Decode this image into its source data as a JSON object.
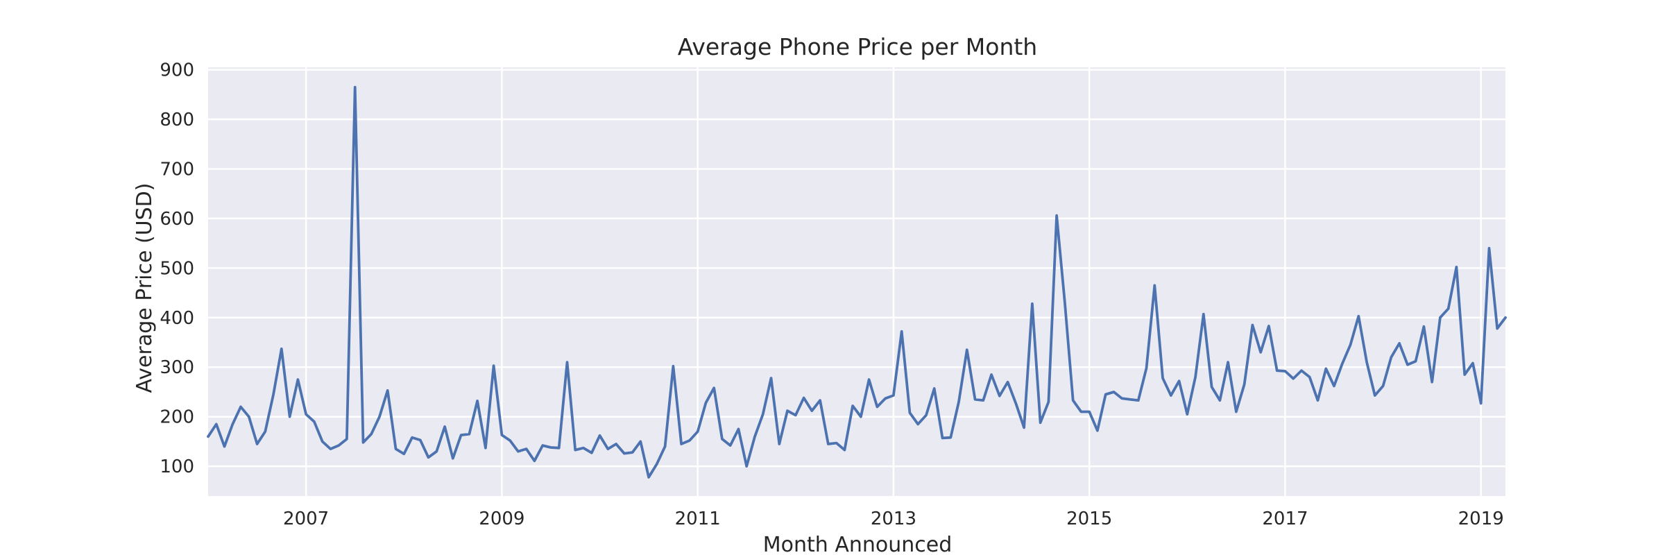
{
  "chart_data": {
    "type": "line",
    "title": "Average Phone Price per Month",
    "xlabel": "Month Announced",
    "ylabel": "Average Price (USD)",
    "xlim": [
      "2006-01",
      "2019-04"
    ],
    "ylim": [
      40,
      905
    ],
    "x_ticks": [
      "2007",
      "2009",
      "2011",
      "2013",
      "2015",
      "2017",
      "2019"
    ],
    "y_ticks": [
      100,
      200,
      300,
      400,
      500,
      600,
      700,
      800,
      900
    ],
    "grid": true,
    "line_color": "#4c72b0",
    "plot_background": "#eaeaf2",
    "grid_color": "#ffffff",
    "series": [
      {
        "x": [
          "2006-01",
          "2006-02",
          "2006-03",
          "2006-04",
          "2006-05",
          "2006-06",
          "2006-07",
          "2006-08",
          "2006-09",
          "2006-10",
          "2006-11",
          "2006-12",
          "2007-01",
          "2007-02",
          "2007-03",
          "2007-04",
          "2007-05",
          "2007-06",
          "2007-07",
          "2007-08",
          "2007-09",
          "2007-10",
          "2007-11",
          "2007-12",
          "2008-01",
          "2008-02",
          "2008-03",
          "2008-04",
          "2008-05",
          "2008-06",
          "2008-07",
          "2008-08",
          "2008-09",
          "2008-10",
          "2008-11",
          "2008-12",
          "2009-01",
          "2009-02",
          "2009-03",
          "2009-04",
          "2009-05",
          "2009-06",
          "2009-07",
          "2009-08",
          "2009-09",
          "2009-10",
          "2009-11",
          "2009-12",
          "2010-01",
          "2010-02",
          "2010-03",
          "2010-04",
          "2010-05",
          "2010-06",
          "2010-07",
          "2010-08",
          "2010-09",
          "2010-10",
          "2010-11",
          "2010-12",
          "2011-01",
          "2011-02",
          "2011-03",
          "2011-04",
          "2011-05",
          "2011-06",
          "2011-07",
          "2011-08",
          "2011-09",
          "2011-10",
          "2011-11",
          "2011-12",
          "2012-01",
          "2012-02",
          "2012-03",
          "2012-04",
          "2012-05",
          "2012-06",
          "2012-07",
          "2012-08",
          "2012-09",
          "2012-10",
          "2012-11",
          "2012-12",
          "2013-01",
          "2013-02",
          "2013-03",
          "2013-04",
          "2013-05",
          "2013-06",
          "2013-07",
          "2013-08",
          "2013-09",
          "2013-10",
          "2013-11",
          "2013-12",
          "2014-01",
          "2014-02",
          "2014-03",
          "2014-04",
          "2014-05",
          "2014-06",
          "2014-07",
          "2014-08",
          "2014-09",
          "2014-10",
          "2014-11",
          "2014-12",
          "2015-01",
          "2015-02",
          "2015-03",
          "2015-04",
          "2015-05",
          "2015-06",
          "2015-07",
          "2015-08",
          "2015-09",
          "2015-10",
          "2015-11",
          "2015-12",
          "2016-01",
          "2016-02",
          "2016-03",
          "2016-04",
          "2016-05",
          "2016-06",
          "2016-07",
          "2016-08",
          "2016-09",
          "2016-10",
          "2016-11",
          "2016-12",
          "2017-01",
          "2017-02",
          "2017-03",
          "2017-04",
          "2017-05",
          "2017-06",
          "2017-07",
          "2017-08",
          "2017-09",
          "2017-10",
          "2017-11",
          "2017-12",
          "2018-01",
          "2018-02",
          "2018-03",
          "2018-04",
          "2018-05",
          "2018-06",
          "2018-07",
          "2018-08",
          "2018-09",
          "2018-10",
          "2018-11",
          "2018-12",
          "2019-01",
          "2019-02",
          "2019-03",
          "2019-04"
        ],
        "values": [
          160,
          185,
          140,
          185,
          220,
          200,
          145,
          170,
          245,
          337,
          200,
          275,
          205,
          190,
          150,
          135,
          142,
          155,
          865,
          148,
          165,
          200,
          253,
          135,
          125,
          158,
          153,
          118,
          130,
          180,
          116,
          163,
          165,
          232,
          137,
          303,
          163,
          152,
          130,
          135,
          111,
          142,
          138,
          137,
          310,
          133,
          137,
          127,
          162,
          135,
          145,
          126,
          128,
          150,
          78,
          105,
          140,
          302,
          145,
          152,
          170,
          228,
          258,
          155,
          142,
          175,
          100,
          160,
          205,
          278,
          145,
          212,
          203,
          238,
          212,
          233,
          145,
          147,
          133,
          222,
          200,
          275,
          220,
          237,
          243,
          372,
          208,
          185,
          203,
          257,
          157,
          158,
          230,
          335,
          235,
          233,
          285,
          242,
          270,
          227,
          178,
          428,
          188,
          230,
          606,
          430,
          233,
          210,
          210,
          172,
          245,
          250,
          237,
          235,
          233,
          298,
          465,
          278,
          243,
          272,
          205,
          280,
          407,
          260,
          233,
          310,
          210,
          265,
          385,
          330,
          383,
          293,
          292,
          277,
          293,
          280,
          233,
          297,
          262,
          307,
          345,
          403,
          310,
          243,
          262,
          320,
          348,
          305,
          312,
          382,
          270,
          400,
          418,
          502,
          285,
          308,
          227,
          540,
          378,
          400
        ]
      }
    ]
  }
}
